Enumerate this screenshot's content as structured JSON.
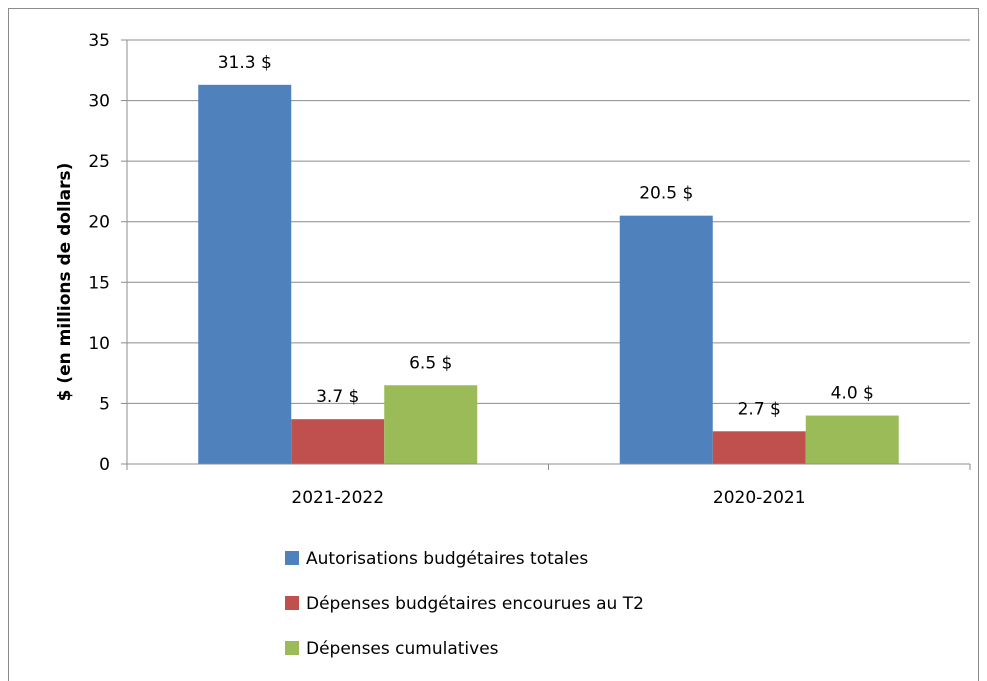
{
  "chart_data": {
    "type": "bar",
    "categories": [
      "2021-2022",
      "2020-2021"
    ],
    "series": [
      {
        "name": "Autorisations budgétaires totales",
        "values": [
          31.3,
          20.5
        ],
        "labels": [
          "31.3 $",
          "20.5 $"
        ],
        "color": "#4f81bd"
      },
      {
        "name": "Dépenses budgétaires encourues au T2",
        "values": [
          3.7,
          2.7
        ],
        "labels": [
          "3.7 $",
          "2.7 $"
        ],
        "color": "#c0504d"
      },
      {
        "name": "Dépenses cumulatives",
        "values": [
          6.5,
          4.0
        ],
        "labels": [
          "6.5 $",
          "4.0 $"
        ],
        "color": "#9bbb59"
      }
    ],
    "ylabel": "$ (en millions de dollars)",
    "ylim": [
      0,
      35
    ],
    "yticks": [
      0,
      5,
      10,
      15,
      20,
      25,
      30,
      35
    ],
    "grid": true,
    "legend_position": "bottom"
  }
}
